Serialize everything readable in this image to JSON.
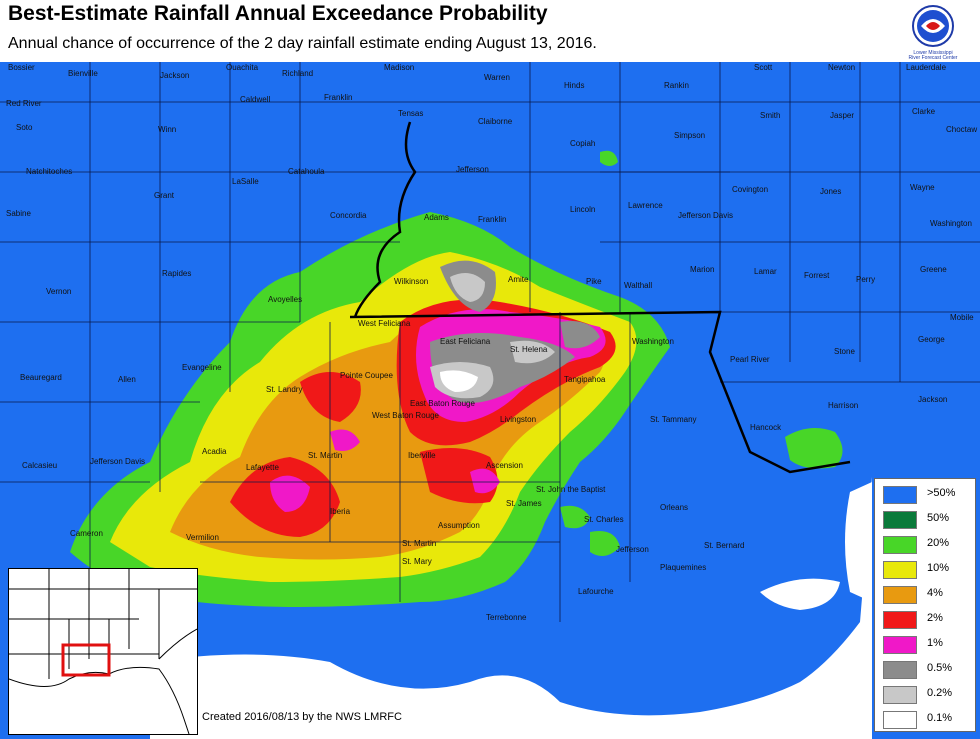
{
  "header": {
    "title": "Best-Estimate Rainfall Annual Exceedance Probability",
    "subtitle": "Annual chance of occurrence of the 2 day rainfall estimate ending August 13, 2016."
  },
  "credit": "Created 2016/08/13 by the NWS LMRFC",
  "colors": {
    "p50plus": "#1e6ff0",
    "p50": "#0a7a3a",
    "p20": "#48d628",
    "p10": "#e8e80a",
    "p4": "#e89a10",
    "p2": "#f01818",
    "p1": "#f018c8",
    "p05": "#8c8c8c",
    "p02": "#c8c8c8",
    "p01": "#ffffff"
  },
  "legend": [
    {
      "label": ">50%",
      "color": "#1e6ff0"
    },
    {
      "label": "50%",
      "color": "#0a7a3a"
    },
    {
      "label": "20%",
      "color": "#48d628"
    },
    {
      "label": "10%",
      "color": "#e8e80a"
    },
    {
      "label": "4%",
      "color": "#e89a10"
    },
    {
      "label": "2%",
      "color": "#f01818"
    },
    {
      "label": "1%",
      "color": "#f018c8"
    },
    {
      "label": "0.5%",
      "color": "#8c8c8c"
    },
    {
      "label": "0.2%",
      "color": "#c8c8c8"
    },
    {
      "label": "0.1%",
      "color": "#ffffff"
    }
  ],
  "counties": [
    "Bossier",
    "Bienville",
    "Jackson",
    "Ouachita",
    "Richland",
    "Madison",
    "Warren",
    "Hinds",
    "Rankin",
    "Scott",
    "Newton",
    "Lauderdale",
    "Red River",
    "Soto",
    "Caldwell",
    "Franklin",
    "Tensas",
    "Claiborne",
    "Smith",
    "Jasper",
    "Clarke",
    "Choctaw",
    "Winn",
    "Copiah",
    "Simpson",
    "Natchitoches",
    "Catahoula",
    "Jefferson",
    "Covington",
    "Jones",
    "Wayne",
    "Grant",
    "LaSalle",
    "Concordia",
    "Adams",
    "Franklin",
    "Lincoln",
    "Lawrence",
    "Jefferson Davis",
    "Sabine",
    "Washington",
    "Rapides",
    "Wilkinson",
    "Amite",
    "Pike",
    "Walthall",
    "Marion",
    "Lamar",
    "Forrest",
    "Perry",
    "Greene",
    "Vernon",
    "Avoyelles",
    "West Feliciana",
    "East Feliciana",
    "St. Helena",
    "Washington",
    "Mobile",
    "Beauregard",
    "Allen",
    "Evangeline",
    "St. Landry",
    "Pointe Coupee",
    "East Baton Rouge",
    "Livingston",
    "Tangipahoa",
    "Pearl River",
    "Stone",
    "George",
    "West Baton Rouge",
    "St. Tammany",
    "Harrison",
    "Jackson",
    "Hancock",
    "Calcasieu",
    "Jefferson Davis",
    "Acadia",
    "Lafayette",
    "St. Martin",
    "Iberville",
    "Ascension",
    "St. John the Baptist",
    "Iberia",
    "St. James",
    "St. Charles",
    "Orleans",
    "Assumption",
    "Jefferson",
    "St. Bernard",
    "Cameron",
    "Vermilion",
    "St. Martin",
    "St. Mary",
    "Lafourche",
    "Plaquemines",
    "Terrebonne"
  ]
}
